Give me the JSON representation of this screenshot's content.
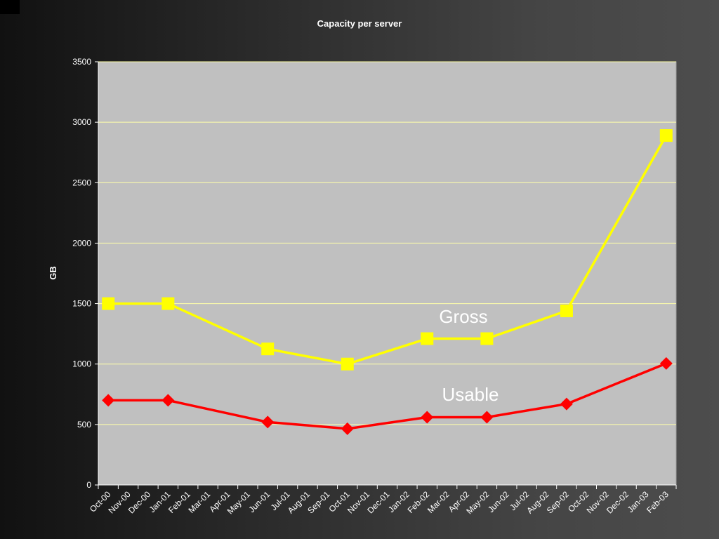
{
  "chart_data": {
    "type": "line",
    "title": "Capacity per server",
    "xlabel": "",
    "ylabel": "GB",
    "ylim": [
      0,
      3500
    ],
    "yticks": [
      0,
      500,
      1000,
      1500,
      2000,
      2500,
      3000,
      3500
    ],
    "grid": true,
    "categories": [
      "Oct-00",
      "Nov-00",
      "Dec-00",
      "Jan-01",
      "Feb-01",
      "Mar-01",
      "Apr-01",
      "May-01",
      "Jun-01",
      "Jul-01",
      "Aug-01",
      "Sep-01",
      "Oct-01",
      "Nov-01",
      "Dec-01",
      "Jan-02",
      "Feb-02",
      "Mar-02",
      "Apr-02",
      "May-02",
      "Jun-02",
      "Jul-02",
      "Aug-02",
      "Sep-02",
      "Oct-02",
      "Nov-02",
      "Dec-02",
      "Jan-03",
      "Feb-03"
    ],
    "series": [
      {
        "name": "Gross",
        "color": "#ffff00",
        "marker": "square",
        "points": [
          {
            "x": "Oct-00",
            "y": 1500
          },
          {
            "x": "Jan-01",
            "y": 1500
          },
          {
            "x": "Jun-01",
            "y": 1125
          },
          {
            "x": "Oct-01",
            "y": 1000
          },
          {
            "x": "Feb-02",
            "y": 1210
          },
          {
            "x": "May-02",
            "y": 1210
          },
          {
            "x": "Sep-02",
            "y": 1440
          },
          {
            "x": "Feb-03",
            "y": 2890
          }
        ]
      },
      {
        "name": "Usable",
        "color": "#ff0000",
        "marker": "diamond",
        "points": [
          {
            "x": "Oct-00",
            "y": 700
          },
          {
            "x": "Jan-01",
            "y": 700
          },
          {
            "x": "Jun-01",
            "y": 520
          },
          {
            "x": "Oct-01",
            "y": 465
          },
          {
            "x": "Feb-02",
            "y": 560
          },
          {
            "x": "May-02",
            "y": 560
          },
          {
            "x": "Sep-02",
            "y": 670
          },
          {
            "x": "Feb-03",
            "y": 1005
          }
        ]
      }
    ]
  }
}
